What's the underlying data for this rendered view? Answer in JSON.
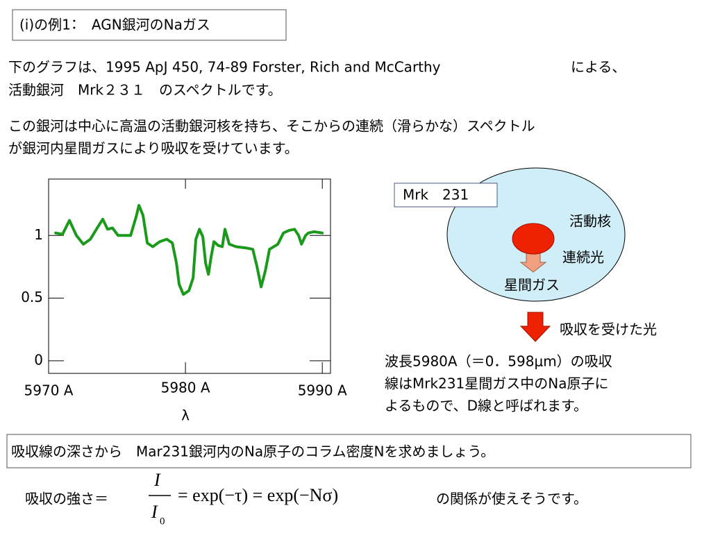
{
  "header": {
    "title": "(i)の例1：　AGN銀河のNaガス"
  },
  "intro": {
    "line1a": "下のグラフは、1995 ApJ 450, 74-89 Forster, Rich and McCarthy",
    "line1b": "による、",
    "line2": "活動銀河　Mrk２３１　のスペクトルです。",
    "line3": "この銀河は中心に高温の活動銀河核を持ち、そこからの連続（滑らかな）スペクトル",
    "line4": "が銀河内星間ガスにより吸収を受けています。"
  },
  "chart_data": {
    "type": "line",
    "color": "#1a9a1a",
    "x": [
      5970.51,
      5971.02,
      5971.52,
      5972.03,
      5972.54,
      5973.05,
      5973.55,
      5973.96,
      5974.31,
      5974.67,
      5975.08,
      5975.58,
      5975.99,
      5976.4,
      5976.6,
      5976.9,
      5977.21,
      5977.61,
      5978.12,
      5978.63,
      5979.04,
      5979.34,
      5979.54,
      5979.85,
      5980.25,
      5980.56,
      5980.76,
      5981.02,
      5981.27,
      5981.47,
      5981.68,
      5981.88,
      5982.08,
      5982.39,
      5982.69,
      5982.89,
      5983.2,
      5983.71,
      5984.47,
      5984.92,
      5985.23,
      5985.53,
      5985.84,
      5986.14,
      5986.75,
      5987.16,
      5987.56,
      5987.97,
      5988.27,
      5988.48,
      5988.78,
      5988.98,
      5989.39,
      5990.0
    ],
    "values": [
      1.02,
      1.01,
      1.12,
      1.0,
      0.93,
      0.97,
      1.06,
      1.13,
      1.05,
      1.06,
      1.0,
      1.0,
      1.0,
      1.15,
      1.24,
      1.16,
      0.94,
      0.91,
      0.95,
      0.97,
      0.94,
      0.78,
      0.61,
      0.53,
      0.56,
      0.66,
      0.97,
      1.05,
      0.99,
      0.78,
      0.69,
      0.83,
      0.95,
      0.92,
      0.91,
      1.05,
      0.93,
      0.91,
      0.9,
      0.89,
      0.75,
      0.59,
      0.72,
      0.89,
      0.93,
      1.02,
      1.04,
      1.05,
      1.0,
      0.93,
      1.0,
      1.02,
      1.03,
      1.02
    ],
    "xlim": [
      5970,
      5990.6
    ],
    "ylim": [
      -0.1,
      1.45
    ],
    "xticks": [
      {
        "value": 5970,
        "label": "5970 A"
      },
      {
        "value": 5980,
        "label": "5980 A"
      },
      {
        "value": 5990,
        "label": "5990 A"
      }
    ],
    "yticks": [
      0,
      0.5,
      1
    ],
    "xlabel": "λ"
  },
  "diagram": {
    "box": "Mrk　231",
    "core": "活動核",
    "continuum": "連続光",
    "gas": "星間ガス",
    "absorbed": "吸収を受けた光",
    "note": [
      "波長5980A（＝0．598μm）の吸収",
      "線はMrk231星間ガス中のNa原子に",
      "よるもので、D線と呼ばれます。"
    ]
  },
  "task": "吸収線の深さから　Mar231銀河内のNa原子のコラム密度Nを求めましょう。",
  "formula": {
    "lhs": "吸収の強さ＝",
    "numerator": "I",
    "denominator": "I",
    "subscript": "0",
    "rhs": "= exp(−τ) = exp(−Nσ)",
    "suffix": "の関係が使えそうです。"
  }
}
